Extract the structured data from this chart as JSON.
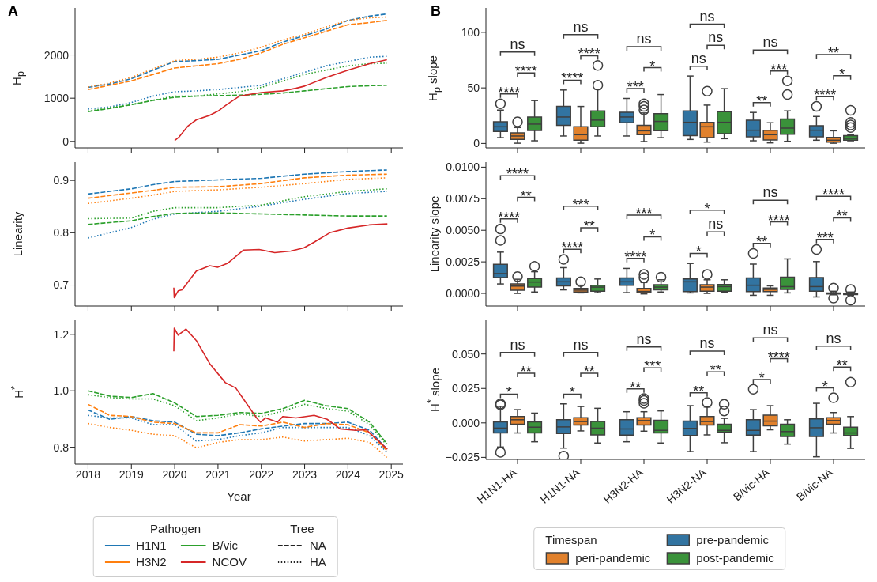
{
  "chart_data": [
    {
      "type": "line",
      "title": "A",
      "ylabel": "H$_{p}$",
      "xlim": [
        2017.7,
        2025.27
      ],
      "xticks": [
        2018,
        2019,
        2020,
        2021,
        2022,
        2023,
        2024,
        2025
      ],
      "ylim": [
        -150,
        3090
      ],
      "yticks": [
        0,
        1000,
        2000
      ],
      "tick_labels": "y",
      "x": [
        2018,
        2018.5,
        2019,
        2019.5,
        2020,
        2020.5,
        2021,
        2021.5,
        2022,
        2022.5,
        2023,
        2023.5,
        2024,
        2024.5,
        2024.9
      ],
      "series": [
        {
          "color": "#1f77b4",
          "line_style": "dashed",
          "values": [
            1250,
            1330,
            1450,
            1650,
            1850,
            1870,
            1900,
            2000,
            2100,
            2300,
            2450,
            2600,
            2800,
            2900,
            2950
          ]
        },
        {
          "color": "#1f77b4",
          "line_style": "dotted",
          "values": [
            750,
            800,
            900,
            1050,
            1150,
            1170,
            1200,
            1250,
            1300,
            1450,
            1600,
            1750,
            1850,
            1950,
            1970
          ]
        },
        {
          "color": "#ff7f0e",
          "line_style": "dashed",
          "values": [
            1200,
            1300,
            1400,
            1550,
            1700,
            1750,
            1800,
            1900,
            2050,
            2250,
            2400,
            2550,
            2700,
            2750,
            2800
          ]
        },
        {
          "color": "#ff7f0e",
          "line_style": "dotted",
          "values": [
            1260,
            1350,
            1480,
            1680,
            1870,
            1900,
            1950,
            2050,
            2180,
            2350,
            2480,
            2650,
            2800,
            2860,
            2880
          ]
        },
        {
          "color": "#2ca02c",
          "line_style": "dashed",
          "values": [
            690,
            760,
            850,
            950,
            1020,
            1050,
            1060,
            1070,
            1090,
            1120,
            1170,
            1220,
            1270,
            1290,
            1300
          ]
        },
        {
          "color": "#2ca02c",
          "line_style": "dotted",
          "values": [
            700,
            780,
            850,
            950,
            1050,
            1050,
            1100,
            1150,
            1250,
            1400,
            1550,
            1650,
            1750,
            1800,
            1810
          ]
        },
        {
          "color": "#d62728",
          "line_style": "solid",
          "x": [
            2020,
            2020.1,
            2020.3,
            2020.5,
            2020.8,
            2021,
            2021.2,
            2021.5,
            2021.8,
            2022,
            2022.5,
            2022.8,
            2023,
            2023.5,
            2024,
            2024.5,
            2024.9
          ],
          "values": [
            20,
            100,
            350,
            500,
            600,
            700,
            850,
            1050,
            1100,
            1130,
            1170,
            1230,
            1280,
            1480,
            1650,
            1800,
            1890
          ]
        }
      ]
    },
    {
      "type": "line",
      "ylabel": "Linearity",
      "xlim": [
        2017.7,
        2025.27
      ],
      "xticks": [
        2018,
        2019,
        2020,
        2021,
        2022,
        2023,
        2024,
        2025
      ],
      "ylim": [
        0.66,
        0.935
      ],
      "yticks": [
        0.7,
        0.8,
        0.9
      ],
      "tick_labels": "y",
      "x": [
        2018,
        2019,
        2019.5,
        2020,
        2021,
        2022,
        2023,
        2024,
        2024.9
      ],
      "series": [
        {
          "color": "#1f77b4",
          "line_style": "dashed",
          "values": [
            0.874,
            0.884,
            0.892,
            0.898,
            0.901,
            0.904,
            0.912,
            0.917,
            0.92
          ]
        },
        {
          "color": "#1f77b4",
          "line_style": "dotted",
          "values": [
            0.79,
            0.81,
            0.826,
            0.836,
            0.841,
            0.851,
            0.864,
            0.875,
            0.879
          ]
        },
        {
          "color": "#ff7f0e",
          "line_style": "dashed",
          "values": [
            0.866,
            0.876,
            0.881,
            0.887,
            0.888,
            0.894,
            0.905,
            0.91,
            0.912
          ]
        },
        {
          "color": "#ff7f0e",
          "line_style": "dotted",
          "values": [
            0.856,
            0.866,
            0.872,
            0.879,
            0.882,
            0.887,
            0.894,
            0.902,
            0.905
          ]
        },
        {
          "color": "#2ca02c",
          "line_style": "dashed",
          "values": [
            0.816,
            0.823,
            0.831,
            0.837,
            0.838,
            0.836,
            0.834,
            0.832,
            0.832
          ]
        },
        {
          "color": "#2ca02c",
          "line_style": "dotted",
          "values": [
            0.827,
            0.828,
            0.841,
            0.848,
            0.848,
            0.853,
            0.869,
            0.879,
            0.884
          ]
        },
        {
          "color": "#d62728",
          "line_style": "solid",
          "x": [
            2019.98,
            2019.99,
            2020.08,
            2020.17,
            2020.5,
            2020.81,
            2020.99,
            2021.23,
            2021.59,
            2021.95,
            2022.31,
            2022.68,
            2022.98,
            2023.22,
            2023.58,
            2024,
            2024.49,
            2024.91
          ],
          "values": [
            0.695,
            0.676,
            0.689,
            0.691,
            0.727,
            0.737,
            0.734,
            0.742,
            0.767,
            0.768,
            0.762,
            0.765,
            0.771,
            0.782,
            0.8,
            0.809,
            0.815,
            0.817
          ]
        }
      ]
    },
    {
      "type": "line",
      "ylabel": "H$^{*}$",
      "xlabel": "Year",
      "legend": "bottom",
      "legend_title": "Pathogen",
      "annotations": [
        "Tree",
        "NA",
        "HA"
      ],
      "xlim": [
        2017.7,
        2025.27
      ],
      "xticks": [
        2018,
        2019,
        2020,
        2021,
        2022,
        2023,
        2024,
        2025
      ],
      "ylim": [
        0.74,
        1.25
      ],
      "yticks": [
        0.8,
        {
          "value": 1.0,
          "label": "1.0"
        },
        1.2
      ],
      "x": [
        2018,
        2018.5,
        2019,
        2019.5,
        2020,
        2020.5,
        2021,
        2021.5,
        2022,
        2022.5,
        2023,
        2023.5,
        2024,
        2024.5,
        2024.9
      ],
      "series": [
        {
          "name": "H1N1",
          "color": "#1f77b4",
          "line_style": "dashed",
          "values": [
            0.932,
            0.899,
            0.909,
            0.894,
            0.889,
            0.846,
            0.841,
            0.851,
            0.865,
            0.875,
            0.884,
            0.884,
            0.889,
            0.86,
            0.793
          ]
        },
        {
          "color": "#1f77b4",
          "line_style": "dotted",
          "values": [
            0.913,
            0.904,
            0.904,
            0.88,
            0.88,
            0.822,
            0.827,
            0.841,
            0.851,
            0.87,
            0.87,
            0.87,
            0.87,
            0.841,
            0.783
          ]
        },
        {
          "name": "H3N2",
          "color": "#ff7f0e",
          "line_style": "dashed",
          "values": [
            0.952,
            0.913,
            0.909,
            0.889,
            0.884,
            0.851,
            0.851,
            0.88,
            0.875,
            0.889,
            0.87,
            0.884,
            0.88,
            0.851,
            0.788
          ]
        },
        {
          "color": "#ff7f0e",
          "line_style": "dotted",
          "values": [
            0.884,
            0.87,
            0.86,
            0.846,
            0.841,
            0.798,
            0.817,
            0.827,
            0.827,
            0.836,
            0.822,
            0.827,
            0.832,
            0.817,
            0.764
          ]
        },
        {
          "name": "B/vic",
          "color": "#2ca02c",
          "line_style": "dashed",
          "values": [
            1.0,
            0.981,
            0.976,
            0.99,
            0.957,
            0.909,
            0.913,
            0.923,
            0.92,
            0.937,
            0.966,
            0.947,
            0.937,
            0.889,
            0.812
          ]
        },
        {
          "color": "#2ca02c",
          "line_style": "dotted",
          "values": [
            0.986,
            0.976,
            0.971,
            0.971,
            0.947,
            0.894,
            0.904,
            0.918,
            0.909,
            0.928,
            0.952,
            0.937,
            0.928,
            0.88,
            0.807
          ]
        },
        {
          "name": "NCOV",
          "color": "#d62728",
          "line_style": "solid",
          "x": [
            2019.98,
            2019.99,
            2020.08,
            2020.26,
            2020.5,
            2020.81,
            2021.17,
            2021.41,
            2021.65,
            2021.89,
            2021.98,
            2022.1,
            2022.37,
            2022.5,
            2022.8,
            2023.22,
            2023.52,
            2023.82,
            2024.18,
            2024.42,
            2024.91
          ],
          "values": [
            1.14,
            1.222,
            1.197,
            1.219,
            1.178,
            1.096,
            1.029,
            1.01,
            0.957,
            0.904,
            0.889,
            0.904,
            0.889,
            0.909,
            0.904,
            0.913,
            0.899,
            0.865,
            0.86,
            0.862,
            0.793
          ]
        }
      ]
    },
    {
      "type": "box",
      "title": "B",
      "ylabel": "H$_{p}$ slope",
      "tick_labels": "y",
      "ylim": [
        -4,
        122
      ],
      "yticks": [
        0,
        50,
        100
      ],
      "annotations": [
        "****",
        "****",
        "ns",
        "****",
        "****",
        "ns",
        "***",
        "*",
        "ns",
        "ns",
        "ns",
        "ns",
        "**",
        "***",
        "ns",
        "****",
        "*",
        "**"
      ],
      "series": [
        {
          "color": "#3274a1",
          "boxes": [
            {
              "low": 5.2,
              "q1": 10.7,
              "median": 15,
              "q3": 19.5,
              "high": 30,
              "outliers": [
                35.7
              ]
            },
            {
              "low": 6.7,
              "q1": 16.2,
              "median": 23.8,
              "q3": 33.3,
              "high": 48.1
            },
            {
              "low": 6.7,
              "q1": 18.6,
              "median": 23.8,
              "q3": 28.1,
              "high": 40.5
            },
            {
              "low": 3.6,
              "q1": 7.1,
              "median": 19,
              "q3": 29.3,
              "high": 60.7
            },
            {
              "low": 2.4,
              "q1": 6,
              "median": 11.9,
              "q3": 21,
              "high": 27.9
            },
            {
              "low": 2.9,
              "q1": 6,
              "median": 11.9,
              "q3": 16,
              "high": 24.3,
              "outliers": [
                33.3
              ]
            }
          ]
        },
        {
          "color": "#e1812c",
          "boxes": [
            {
              "low": 0.2,
              "q1": 3.6,
              "median": 6.7,
              "q3": 9.5,
              "high": 14.3,
              "outliers": [
                19.5
              ]
            },
            {
              "low": 0.2,
              "q1": 2.9,
              "median": 7.9,
              "q3": 15,
              "high": 33.3
            },
            {
              "low": 1.7,
              "q1": 7.9,
              "median": 11.4,
              "q3": 16.2,
              "high": 27.4,
              "outliers": [
                30.2,
                33.3,
                35.7
              ]
            },
            {
              "low": 1.2,
              "q1": 5.2,
              "median": 15,
              "q3": 19,
              "high": 34.5,
              "outliers": [
                47.1
              ]
            },
            {
              "low": 0.5,
              "q1": 3.1,
              "median": 7.9,
              "q3": 11.9,
              "high": 18.6
            },
            {
              "low": 0.2,
              "q1": 1.2,
              "median": 2.9,
              "q3": 5.5,
              "high": 11.4
            }
          ]
        },
        {
          "color": "#3a923a",
          "boxes": [
            {
              "low": 2.4,
              "q1": 11.7,
              "median": 17.4,
              "q3": 23.8,
              "high": 38.6
            },
            {
              "low": 6.7,
              "q1": 15,
              "median": 21,
              "q3": 29.3,
              "high": 48.8,
              "outliers": [
                52.4,
                70.2
              ]
            },
            {
              "low": 5.2,
              "q1": 11.4,
              "median": 19.8,
              "q3": 26.7,
              "high": 44
            },
            {
              "low": 4.3,
              "q1": 8.8,
              "median": 19,
              "q3": 28.6,
              "high": 49.3
            },
            {
              "low": 1.9,
              "q1": 8.3,
              "median": 13.8,
              "q3": 21.9,
              "high": 29.3,
              "outliers": [
                44,
                56.4
              ]
            },
            {
              "low": 2.4,
              "q1": 2.9,
              "median": 4.5,
              "q3": 7.1,
              "high": 7.9,
              "outliers": [
                14.3,
                16.7,
                19,
                29.8
              ]
            }
          ]
        }
      ]
    },
    {
      "type": "box",
      "ylabel": "Linearity slope",
      "tick_labels": "y",
      "ylim": [
        -0.001,
        0.0104
      ],
      "yticks": [
        {
          "value": 0,
          "label": "0.0000"
        },
        {
          "value": 0.0025,
          "label": "0.0025"
        },
        {
          "value": 0.005,
          "label": "0.0050"
        },
        {
          "value": 0.0075,
          "label": "0.0075"
        },
        {
          "value": 0.01,
          "label": "0.0100"
        }
      ],
      "annotations": [
        "****",
        "**",
        "****",
        "****",
        "**",
        "***",
        "****",
        "*",
        "***",
        "*",
        "ns",
        "*",
        "**",
        "****",
        "ns",
        "***",
        "**",
        "****"
      ],
      "series": [
        {
          "color": "#3274a1",
          "boxes": [
            {
              "low": 0.00075,
              "q1": 0.00125,
              "median": 0.00157,
              "q3": 0.0023,
              "high": 0.00327,
              "outliers": [
                0.0042,
                0.0051
              ]
            },
            {
              "low": 0.00028,
              "q1": 0.0006,
              "median": 0.00092,
              "q3": 0.00123,
              "high": 0.00204,
              "outliers": [
                0.00269
              ]
            },
            {
              "low": 6e-05,
              "q1": 0.00065,
              "median": 0.00092,
              "q3": 0.00123,
              "high": 0.00198
            },
            {
              "low": 4e-05,
              "q1": 0.00015,
              "median": 0.00092,
              "q3": 0.00114,
              "high": 0.00237
            },
            {
              "low": -0.00015,
              "q1": 0.00015,
              "median": 0.00065,
              "q3": 0.00123,
              "high": 0.00232,
              "outliers": [
                0.00316
              ]
            },
            {
              "low": -0.00028,
              "q1": 0.00017,
              "median": 0.00054,
              "q3": 0.00125,
              "high": 0.00252,
              "outliers": [
                0.00348
              ]
            }
          ]
        },
        {
          "color": "#e1812c",
          "boxes": [
            {
              "low": 0,
              "q1": 0.00026,
              "median": 0.00058,
              "q3": 0.00075,
              "high": 0.00112,
              "outliers": [
                0.00133
              ]
            },
            {
              "low": 4e-05,
              "q1": 0.00011,
              "median": 0.00026,
              "q3": 0.00039,
              "high": 0.00065,
              "outliers": [
                0.00092
              ]
            },
            {
              "low": -4e-05,
              "q1": 6e-05,
              "median": 0.00015,
              "q3": 0.00039,
              "high": 0.00086,
              "outliers": [
                0.00125,
                0.0015
              ]
            },
            {
              "low": 0,
              "q1": 0.00017,
              "median": 0.0005,
              "q3": 0.00069,
              "high": 0.00108,
              "outliers": [
                0.0015
              ]
            },
            {
              "low": -0.00015,
              "q1": 0.00015,
              "median": 0.00032,
              "q3": 0.00043,
              "high": 0.0006
            },
            {
              "low": -0.00011,
              "q1": -4e-05,
              "median": 0,
              "q3": 4e-05,
              "high": 0.00017,
              "outliers": [
                0.00043,
                -0.00037
              ]
            }
          ]
        },
        {
          "color": "#3a923a",
          "boxes": [
            {
              "low": 0.00011,
              "q1": 0.0005,
              "median": 0.0009,
              "q3": 0.00118,
              "high": 0.00172,
              "outliers": [
                0.00215
              ]
            },
            {
              "low": 6e-05,
              "q1": 0.00017,
              "median": 0.0005,
              "q3": 0.00065,
              "high": 0.00114
            },
            {
              "low": 0.00011,
              "q1": 0.00028,
              "median": 0.0005,
              "q3": 0.00069,
              "high": 0.00108,
              "outliers": [
                0.00129
              ]
            },
            {
              "low": 0.00011,
              "q1": 0.00017,
              "median": 0.00054,
              "q3": 0.00071,
              "high": 0.00108
            },
            {
              "low": 4e-05,
              "q1": 0.00032,
              "median": 0.00054,
              "q3": 0.00129,
              "high": 0.00273
            },
            {
              "low": -0.00015,
              "q1": -9e-05,
              "median": -4e-05,
              "q3": 0,
              "high": 0.00011,
              "outliers": [
                0.00032,
                -0.00054
              ]
            }
          ]
        }
      ]
    },
    {
      "type": "box",
      "ylabel": "H$^{*}$ slope",
      "legend": "bottom",
      "legend_title": "Timespan",
      "categories": [
        "H1N1-HA",
        "H1N1-NA",
        "H3N2-HA",
        "H3N2-NA",
        "B/vic-HA",
        "B/vic-NA"
      ],
      "ylim": [
        -0.0265,
        0.0745
      ],
      "yticks": [
        {
          "value": -0.025,
          "label": "−0.025"
        },
        {
          "value": 0,
          "label": "0.000"
        },
        {
          "value": 0.025,
          "label": "0.025"
        },
        {
          "value": 0.05,
          "label": "0.050"
        }
      ],
      "annotations": [
        "*",
        "**",
        "ns",
        "*",
        "**",
        "ns",
        "**",
        "***",
        "ns",
        "**",
        "**",
        "ns",
        "*",
        "****",
        "ns",
        "*",
        "**",
        "ns"
      ],
      "series": [
        {
          "name": "pre-pandemic",
          "color": "#3274a1",
          "boxes": [
            {
              "low": -0.0175,
              "q1": -0.0073,
              "median": -0.0038,
              "q3": 0.0008,
              "high": 0.012,
              "outliers": [
                0.0138,
                0.0131,
                -0.0213
              ]
            },
            {
              "low": -0.0183,
              "q1": -0.0077,
              "median": -0.0029,
              "q3": 0.0023,
              "high": 0.0138,
              "outliers": [
                -0.024
              ]
            },
            {
              "low": -0.0137,
              "q1": -0.0088,
              "median": -0.0044,
              "q3": 0.0023,
              "high": 0.0081
            },
            {
              "low": -0.0208,
              "q1": -0.0092,
              "median": -0.004,
              "q3": 0.0013,
              "high": 0.0125
            },
            {
              "low": -0.0208,
              "q1": -0.0088,
              "median": -0.0054,
              "q3": 0.0023,
              "high": 0.0096,
              "outliers": [
                0.0244
              ]
            },
            {
              "low": -0.0246,
              "q1": -0.0098,
              "median": -0.0035,
              "q3": 0.0029,
              "high": 0.0142
            }
          ]
        },
        {
          "name": "peri-pandemic",
          "color": "#e1812c",
          "boxes": [
            {
              "low": -0.0073,
              "q1": -0.001,
              "median": 0.0023,
              "q3": 0.0046,
              "high": 0.0096
            },
            {
              "low": -0.0058,
              "q1": -0.0015,
              "median": 0.001,
              "q3": 0.0037,
              "high": 0.0119
            },
            {
              "low": -0.006,
              "q1": -0.0015,
              "median": 0.0017,
              "q3": 0.0038,
              "high": 0.0081,
              "outliers": [
                0.0142,
                0.0162,
                0.0177
              ]
            },
            {
              "low": -0.0087,
              "q1": -0.0015,
              "median": 0.001,
              "q3": 0.0046,
              "high": 0.0115,
              "outliers": [
                0.0148
              ]
            },
            {
              "low": -0.005,
              "q1": -0.0021,
              "median": 0.0013,
              "q3": 0.0056,
              "high": 0.0125
            },
            {
              "low": -0.0073,
              "q1": -0.001,
              "median": 0.0017,
              "q3": 0.0038,
              "high": 0.0075,
              "outliers": [
                0.0183
              ]
            }
          ]
        },
        {
          "name": "post-pandemic",
          "color": "#3a923a",
          "boxes": [
            {
              "low": -0.0137,
              "q1": -0.0073,
              "median": -0.0031,
              "q3": 0.0008,
              "high": 0.0071
            },
            {
              "low": -0.0146,
              "q1": -0.0087,
              "median": -0.0038,
              "q3": 0.001,
              "high": 0.0106
            },
            {
              "low": -0.0146,
              "q1": -0.0073,
              "median": -0.0054,
              "q3": 0.0019,
              "high": 0.0087
            },
            {
              "low": -0.0144,
              "q1": -0.0067,
              "median": -0.0054,
              "q3": -0.001,
              "high": 0.0033,
              "outliers": [
                0.0087,
                0.0135
              ]
            },
            {
              "low": -0.0154,
              "q1": -0.0098,
              "median": -0.0063,
              "q3": -0.001,
              "high": 0.0023
            },
            {
              "low": -0.0185,
              "q1": -0.0092,
              "median": -0.0073,
              "q3": -0.0031,
              "high": 0.0046,
              "outliers": [
                0.0296
              ]
            }
          ]
        }
      ]
    }
  ]
}
